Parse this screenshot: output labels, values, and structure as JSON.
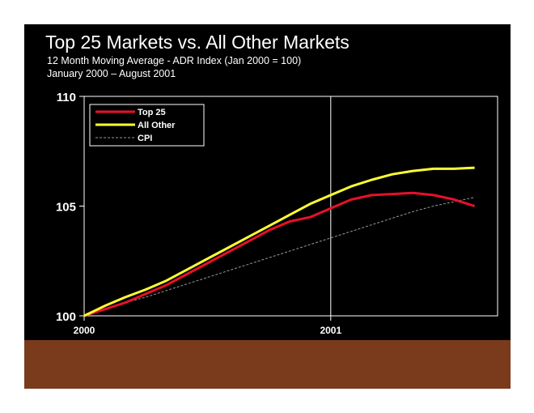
{
  "title": "Top 25 Markets vs. All Other Markets",
  "subtitle": "12 Month Moving Average - ADR Index (Jan 2000 = 100)",
  "date_range": "January 2000 – August 2001",
  "colors": {
    "background": "#000000",
    "footer_band": "#7a3b1c",
    "top25": "#e8102a",
    "all_other": "#ffff33",
    "cpi": "#999999",
    "axis": "#ffffff"
  },
  "chart_data": {
    "type": "line",
    "title": "Top 25 Markets vs. All Other Markets",
    "xlabel": "",
    "ylabel": "",
    "x": [
      "Jan 2000",
      "Feb 2000",
      "Mar 2000",
      "Apr 2000",
      "May 2000",
      "Jun 2000",
      "Jul 2000",
      "Aug 2000",
      "Sep 2000",
      "Oct 2000",
      "Nov 2000",
      "Dec 2000",
      "Jan 2001",
      "Feb 2001",
      "Mar 2001",
      "Apr 2001",
      "May 2001",
      "Jun 2001",
      "Jul 2001",
      "Aug 2001"
    ],
    "x_ticks": [
      {
        "index": 0,
        "label": "2000"
      },
      {
        "index": 12,
        "label": "2001"
      }
    ],
    "ylim": [
      100,
      110
    ],
    "y_ticks": [
      100,
      105,
      110
    ],
    "grid": false,
    "vertical_marker_index": 12,
    "legend_position": "top-left",
    "series": [
      {
        "name": "Top 25",
        "color": "#e8102a",
        "style": "solid",
        "values": [
          100.0,
          100.3,
          100.6,
          101.0,
          101.4,
          101.9,
          102.4,
          102.9,
          103.4,
          103.9,
          104.3,
          104.5,
          104.9,
          105.3,
          105.5,
          105.55,
          105.6,
          105.5,
          105.3,
          105.0
        ]
      },
      {
        "name": "All Other",
        "color": "#ffff33",
        "style": "solid",
        "values": [
          100.0,
          100.45,
          100.85,
          101.2,
          101.6,
          102.1,
          102.6,
          103.1,
          103.6,
          104.1,
          104.6,
          105.1,
          105.5,
          105.9,
          106.2,
          106.45,
          106.6,
          106.7,
          106.7,
          106.75
        ]
      },
      {
        "name": "CPI",
        "color": "#999999",
        "style": "dashed",
        "values": [
          100.0,
          100.3,
          100.6,
          100.85,
          101.15,
          101.45,
          101.75,
          102.05,
          102.35,
          102.65,
          102.95,
          103.25,
          103.55,
          103.85,
          104.15,
          104.45,
          104.75,
          105.0,
          105.2,
          105.4
        ]
      }
    ]
  }
}
